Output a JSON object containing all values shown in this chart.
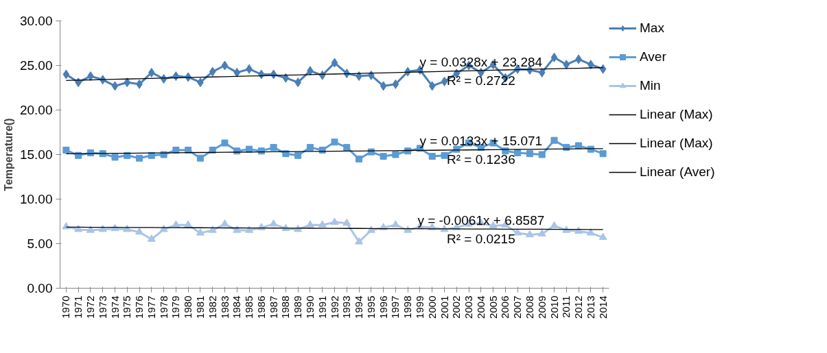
{
  "chart_data": {
    "type": "line",
    "ylabel": "Temperature()",
    "categories": [
      "1970",
      "1971",
      "1972",
      "1973",
      "1974",
      "1975",
      "1976",
      "1977",
      "1978",
      "1979",
      "1980",
      "1981",
      "1982",
      "1983",
      "1984",
      "1985",
      "1986",
      "1987",
      "1988",
      "1989",
      "1990",
      "1991",
      "1992",
      "1993",
      "1994",
      "1995",
      "1996",
      "1997",
      "1998",
      "1999",
      "2000",
      "2001",
      "2002",
      "2003",
      "2004",
      "2005",
      "2006",
      "2007",
      "2008",
      "2009",
      "2010",
      "2011",
      "2012",
      "2013",
      "2014"
    ],
    "series": [
      {
        "name": "Max",
        "color": "#4a7fb5",
        "marker": "diamond",
        "values": [
          24.0,
          23.1,
          23.8,
          23.4,
          22.7,
          23.1,
          22.9,
          24.2,
          23.5,
          23.8,
          23.7,
          23.1,
          24.3,
          25.0,
          24.2,
          24.6,
          24.0,
          24.0,
          23.6,
          23.1,
          24.4,
          23.9,
          25.3,
          24.1,
          23.8,
          23.9,
          22.7,
          22.9,
          24.3,
          24.5,
          22.7,
          23.2,
          24.1,
          25.0,
          24.2,
          25.1,
          23.6,
          24.6,
          24.5,
          24.2,
          25.9,
          25.1,
          25.7,
          25.1,
          24.6
        ]
      },
      {
        "name": "Aver",
        "color": "#5b9bd5",
        "marker": "square",
        "values": [
          15.5,
          14.9,
          15.2,
          15.1,
          14.7,
          14.9,
          14.6,
          14.9,
          15.0,
          15.5,
          15.5,
          14.6,
          15.5,
          16.3,
          15.4,
          15.6,
          15.4,
          15.8,
          15.1,
          14.9,
          15.8,
          15.5,
          16.4,
          15.8,
          14.5,
          15.3,
          14.8,
          15.0,
          15.4,
          15.7,
          14.8,
          14.9,
          15.6,
          16.3,
          15.8,
          16.3,
          15.4,
          15.2,
          15.1,
          15.0,
          16.6,
          15.8,
          16.0,
          15.6,
          15.1
        ]
      },
      {
        "name": "Min",
        "color": "#a9c4e6",
        "marker": "triangle",
        "values": [
          6.9,
          6.6,
          6.5,
          6.6,
          6.7,
          6.6,
          6.3,
          5.5,
          6.6,
          7.1,
          7.1,
          6.2,
          6.5,
          7.2,
          6.5,
          6.5,
          6.8,
          7.2,
          6.7,
          6.6,
          7.1,
          7.1,
          7.4,
          7.3,
          5.2,
          6.5,
          6.8,
          7.1,
          6.5,
          6.9,
          6.8,
          6.6,
          6.8,
          7.2,
          7.3,
          7.0,
          7.1,
          6.2,
          6.0,
          6.1,
          7.0,
          6.5,
          6.4,
          6.2,
          5.7
        ]
      },
      {
        "name": "Linear (Max)",
        "color": "#000000",
        "marker": "none",
        "values": [
          23.32,
          23.35,
          23.38,
          23.42,
          23.45,
          23.48,
          23.51,
          23.55,
          23.58,
          23.61,
          23.64,
          23.68,
          23.71,
          23.74,
          23.78,
          23.81,
          23.84,
          23.87,
          23.91,
          23.94,
          23.97,
          24.01,
          24.04,
          24.07,
          24.1,
          24.14,
          24.17,
          24.2,
          24.24,
          24.27,
          24.3,
          24.33,
          24.37,
          24.4,
          24.43,
          24.47,
          24.5,
          24.53,
          24.56,
          24.6,
          24.63,
          24.66,
          24.69,
          24.73,
          24.76
        ]
      },
      {
        "name": "Linear (Max)",
        "color": "#000000",
        "marker": "none",
        "values": [
          15.08,
          15.1,
          15.11,
          15.12,
          15.14,
          15.15,
          15.16,
          15.18,
          15.19,
          15.2,
          15.22,
          15.23,
          15.24,
          15.26,
          15.27,
          15.28,
          15.3,
          15.31,
          15.32,
          15.34,
          15.35,
          15.36,
          15.38,
          15.39,
          15.4,
          15.42,
          15.43,
          15.44,
          15.46,
          15.47,
          15.48,
          15.5,
          15.51,
          15.52,
          15.54,
          15.55,
          15.56,
          15.58,
          15.59,
          15.6,
          15.62,
          15.63,
          15.64,
          15.66,
          15.67
        ]
      },
      {
        "name": "Linear (Aver)",
        "color": "#000000",
        "marker": "none",
        "values": [
          6.85,
          6.85,
          6.84,
          6.83,
          6.83,
          6.82,
          6.82,
          6.81,
          6.8,
          6.8,
          6.79,
          6.79,
          6.78,
          6.77,
          6.77,
          6.76,
          6.76,
          6.75,
          6.74,
          6.74,
          6.73,
          6.72,
          6.72,
          6.71,
          6.71,
          6.7,
          6.69,
          6.69,
          6.68,
          6.68,
          6.67,
          6.66,
          6.66,
          6.65,
          6.65,
          6.64,
          6.63,
          6.63,
          6.62,
          6.62,
          6.61,
          6.6,
          6.6,
          6.59,
          6.58
        ]
      }
    ],
    "ylim": [
      0,
      30
    ],
    "yticks": [
      {
        "value": 0,
        "label": "0.00"
      },
      {
        "value": 5,
        "label": "5.00"
      },
      {
        "value": 10,
        "label": "10.00"
      },
      {
        "value": 15,
        "label": "15.00"
      },
      {
        "value": 20,
        "label": "20.00"
      },
      {
        "value": 25,
        "label": "25.00"
      },
      {
        "value": 30,
        "label": "30.00"
      }
    ],
    "annotations": [
      "y = 0.0328x + 23.284",
      "R² = 0.2722",
      "y = 0.0133x + 15.071",
      "R² = 0.1236",
      "y = -0.0061x + 6.8587",
      "R² = 0.0215"
    ],
    "grid": false,
    "legend": "right",
    "line_style": "solid"
  }
}
